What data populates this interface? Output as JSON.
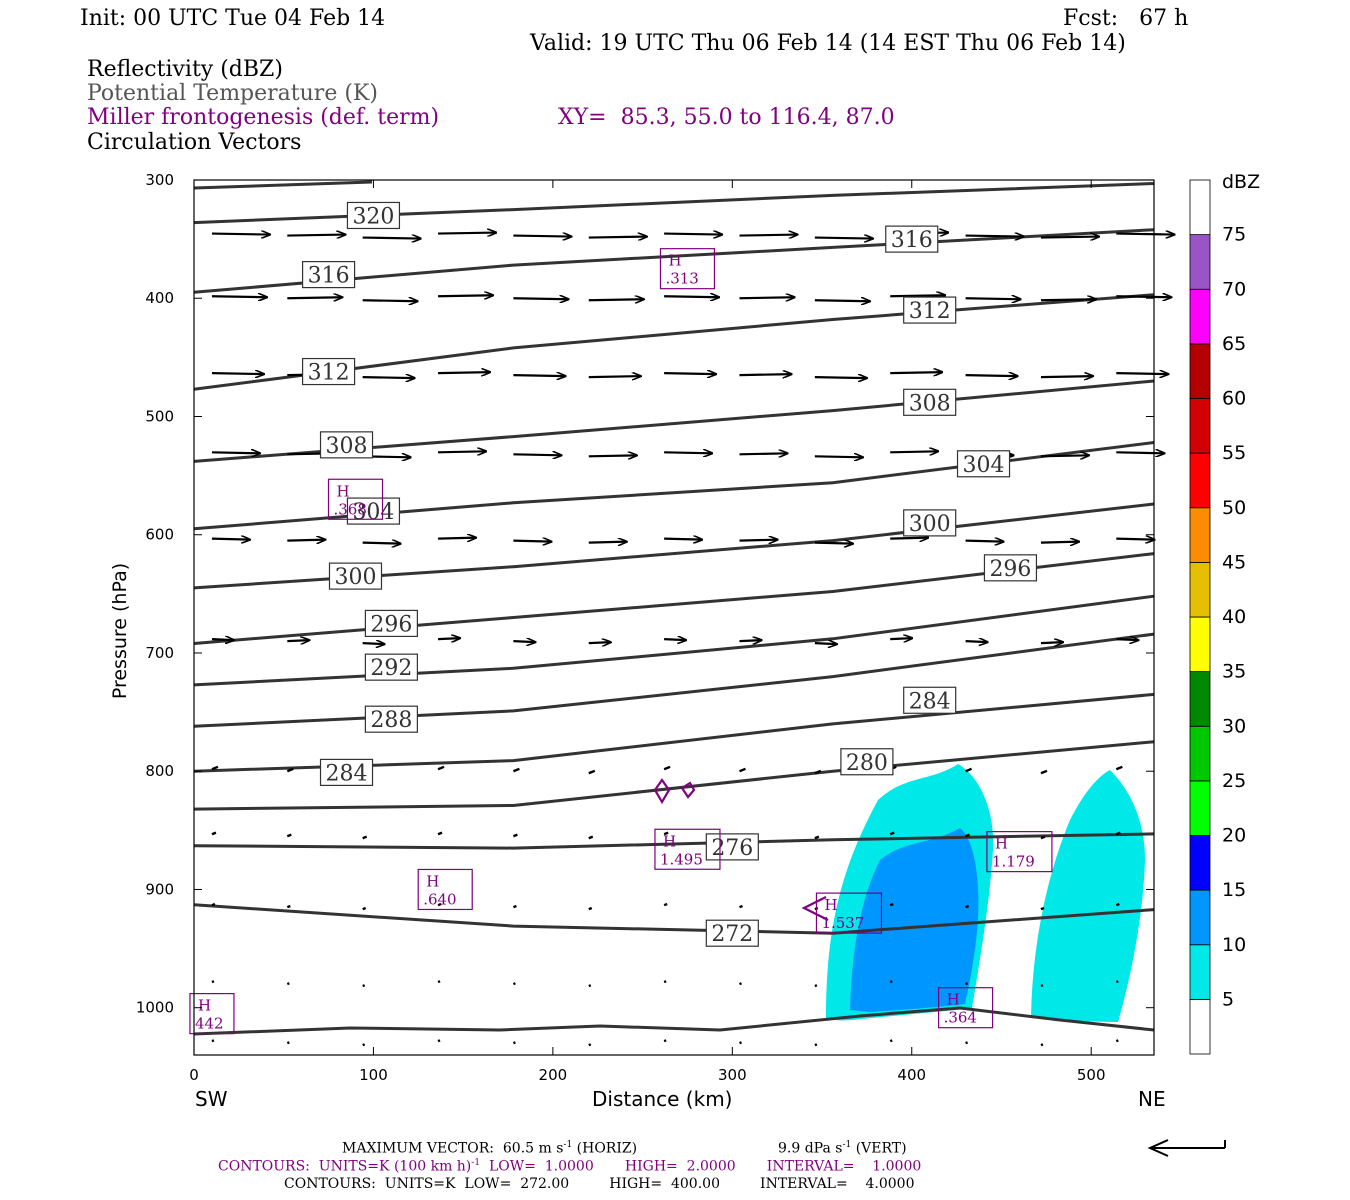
{
  "header": {
    "init": "Init: 00 UTC Tue 04 Feb 14",
    "fcst": "Fcst:   67 h",
    "valid": "Valid: 19 UTC Thu 06 Feb 14 (14 EST Thu 06 Feb 14)",
    "field1": "Reflectivity (dBZ)",
    "field2": "Potential Temperature (K)",
    "field3": "Miller frontogenesis (def. term)",
    "xy": "XY=  85.3, 55.0 to 116.4, 87.0",
    "field4": "Circulation Vectors"
  },
  "axes": {
    "ylabel": "Pressure (hPa)",
    "xlabel": "Distance (km)",
    "left_end": "SW",
    "right_end": "NE"
  },
  "colorbar": {
    "unit": "dBZ",
    "levels": [
      "5",
      "10",
      "15",
      "20",
      "25",
      "30",
      "35",
      "40",
      "45",
      "50",
      "55",
      "60",
      "65",
      "70",
      "75"
    ],
    "colors": [
      "#ffffff",
      "#00e8e8",
      "#0096ff",
      "#0000ff",
      "#00ff00",
      "#00c800",
      "#008800",
      "#ffff00",
      "#e6be00",
      "#ff8c00",
      "#ff0000",
      "#d20000",
      "#b40000",
      "#ff00ff",
      "#9955c8",
      "#ffffff"
    ]
  },
  "footer": {
    "max_vector_label": "MAXIMUM VECTOR:  60.5 m s",
    "max_vector_horiz": "(HORIZ)",
    "vert_label": "9.9 dPa s",
    "vert_suffix": "(VERT)",
    "contours1": "CONTOURS:  UNITS=K (100 km h)",
    "contours1_tail": "LOW=  1.0000       HIGH=  2.0000       INTERVAL=    1.0000",
    "contours2": "CONTOURS:  UNITS=K  LOW=  272.00         HIGH=  400.00         INTERVAL=    4.0000"
  },
  "chart_data": {
    "type": "cross-section",
    "x_range": [
      0,
      535
    ],
    "y_range_hpa": [
      300,
      1040
    ],
    "x_ticks": [
      0,
      100,
      200,
      300,
      400,
      500
    ],
    "y_ticks": [
      300,
      400,
      500,
      600,
      700,
      800,
      900,
      1000
    ],
    "theta_contours": [
      {
        "label": "320",
        "p": [
          336,
          325,
          313,
          303
        ],
        "label_at": [
          100,
          330
        ]
      },
      {
        "label": "316",
        "p": [
          395,
          372,
          357,
          342
        ],
        "label_at": [
          75,
          380
        ]
      },
      {
        "label": "316",
        "p": [
          395,
          372,
          357,
          342
        ],
        "label_at": [
          400,
          350
        ]
      },
      {
        "label": "312",
        "p": [
          477,
          442,
          418,
          397
        ],
        "label_at": [
          75,
          462
        ]
      },
      {
        "label": "312",
        "p": [
          477,
          442,
          418,
          397
        ],
        "label_at": [
          410,
          410
        ]
      },
      {
        "label": "308",
        "p": [
          538,
          517,
          495,
          470
        ],
        "label_at": [
          85,
          524
        ]
      },
      {
        "label": "308",
        "p": [
          538,
          517,
          495,
          470
        ],
        "label_at": [
          410,
          488
        ]
      },
      {
        "label": "304",
        "p": [
          595,
          573,
          556,
          522
        ],
        "label_at": [
          100,
          580
        ]
      },
      {
        "label": "304",
        "p": [
          595,
          573,
          556,
          522
        ],
        "label_at": [
          440,
          540
        ]
      },
      {
        "label": "300",
        "p": [
          645,
          627,
          605,
          574
        ],
        "label_at": [
          90,
          635
        ]
      },
      {
        "label": "300",
        "p": [
          645,
          627,
          605,
          574
        ],
        "label_at": [
          410,
          590
        ]
      },
      {
        "label": "296",
        "p": [
          692,
          670,
          648,
          616
        ],
        "label_at": [
          110,
          675
        ]
      },
      {
        "label": "296",
        "p": [
          692,
          670,
          648,
          616
        ],
        "label_at": [
          455,
          628
        ]
      },
      {
        "label": "292",
        "p": [
          727,
          713,
          688,
          652
        ],
        "label_at": [
          110,
          712
        ]
      },
      {
        "label": "288",
        "p": [
          762,
          749,
          720,
          684
        ],
        "label_at": [
          110,
          756
        ]
      },
      {
        "label": "284",
        "p": [
          800,
          791,
          760,
          735
        ],
        "label_at": [
          85,
          801
        ]
      },
      {
        "label": "284",
        "p": [
          800,
          791,
          760,
          735
        ],
        "label_at": [
          410,
          740
        ]
      },
      {
        "label": "280",
        "p": [
          832,
          829,
          800,
          775
        ],
        "label_at": [
          375,
          792
        ]
      },
      {
        "label": "276",
        "p": [
          863,
          865,
          858,
          853
        ],
        "label_at": [
          300,
          864
        ]
      },
      {
        "label": "272",
        "p": [
          913,
          931,
          937,
          917
        ],
        "label_at": [
          300,
          937
        ]
      }
    ],
    "frontogenesis_maxima": [
      {
        "label": "H",
        "value": ".313",
        "x": 275,
        "p": 375
      },
      {
        "label": "H",
        "value": ".368",
        "x": 90,
        "p": 570
      },
      {
        "label": "H",
        "value": "1.495",
        "x": 275,
        "p": 866
      },
      {
        "label": "H",
        "value": ".640",
        "x": 140,
        "p": 900
      },
      {
        "label": "H",
        "value": "1.537",
        "x": 365,
        "p": 920
      },
      {
        "label": "H",
        "value": "1.179",
        "x": 460,
        "p": 868
      },
      {
        "label": "H",
        "value": ".364",
        "x": 430,
        "p": 1000
      },
      {
        "label": "H",
        "value": "442",
        "x": 10,
        "p": 1005
      }
    ],
    "reflectivity_regions": [
      {
        "dbz_min": 5,
        "x_range": [
          352,
          450
        ],
        "p_range": [
          795,
          1010
        ]
      },
      {
        "dbz_min": 10,
        "x_range": [
          365,
          430
        ],
        "p_range": [
          845,
          1010
        ]
      },
      {
        "dbz_min": 5,
        "x_range": [
          465,
          530
        ],
        "p_range": [
          797,
          1010
        ]
      }
    ]
  }
}
